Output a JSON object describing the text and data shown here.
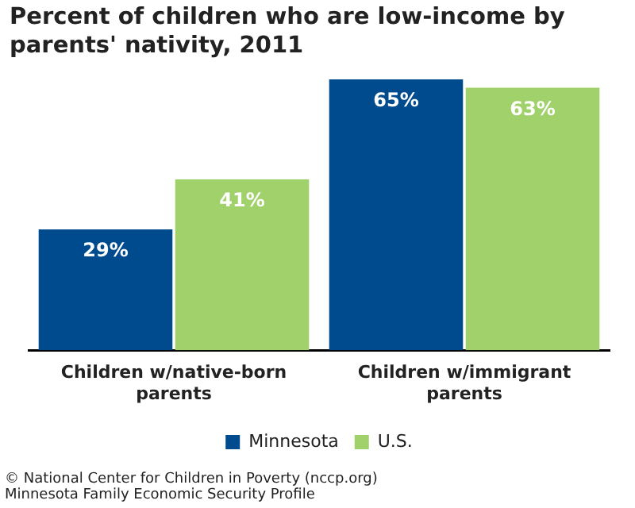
{
  "chart_data": {
    "type": "bar",
    "title": "Percent of children who are low-income by parents' nativity, 2011",
    "categories": [
      "Children w/native-born parents",
      "Children w/immigrant parents"
    ],
    "series": [
      {
        "name": "Minnesota",
        "color": "#004b8d",
        "values": [
          29,
          65
        ],
        "value_labels": [
          "29%",
          "65%"
        ]
      },
      {
        "name": "U.S.",
        "color": "#a1d16a",
        "values": [
          41,
          63
        ],
        "value_labels": [
          "41%",
          "63%"
        ]
      }
    ],
    "grid": false,
    "legend": "bottom",
    "annotations": [
      "© National Center for Children in Poverty (nccp.org)",
      "Minnesota Family Economic Security Profile"
    ]
  }
}
